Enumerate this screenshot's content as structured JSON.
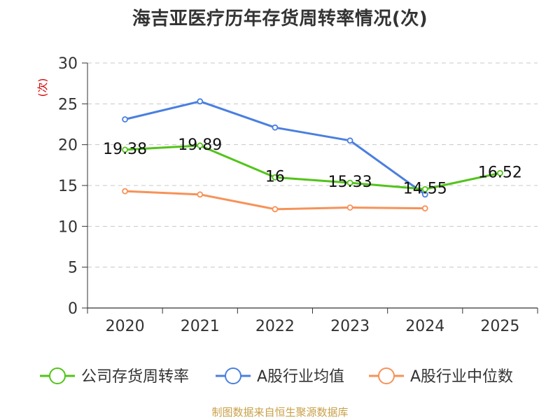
{
  "chart_data": {
    "type": "line",
    "title": "海吉亚医疗历年存货周转率情况(次)",
    "ylabel": "(次)",
    "xlabel": "",
    "categories": [
      "2020",
      "2021",
      "2022",
      "2023",
      "2024",
      "2025"
    ],
    "ylim": [
      0,
      30
    ],
    "yticks": [
      0,
      5,
      10,
      15,
      20,
      25,
      30
    ],
    "grid": true,
    "legend_position": "bottom",
    "series": [
      {
        "name": "公司存货周转率",
        "color": "#52c41a",
        "values": [
          19.38,
          19.89,
          16,
          15.33,
          14.55,
          16.52
        ],
        "labels": [
          "19.38",
          "19.89",
          "16",
          "15.33",
          "14.55",
          "16.52"
        ],
        "show_labels": true
      },
      {
        "name": "A股行业均值",
        "color": "#4a7fe0",
        "values": [
          23.1,
          25.3,
          22.1,
          20.5,
          13.9,
          null
        ],
        "show_labels": false
      },
      {
        "name": "A股行业中位数",
        "color": "#f79258",
        "values": [
          14.3,
          13.9,
          12.1,
          12.3,
          12.2,
          null
        ],
        "show_labels": false
      }
    ]
  },
  "source": "制图数据来自恒生聚源数据库"
}
